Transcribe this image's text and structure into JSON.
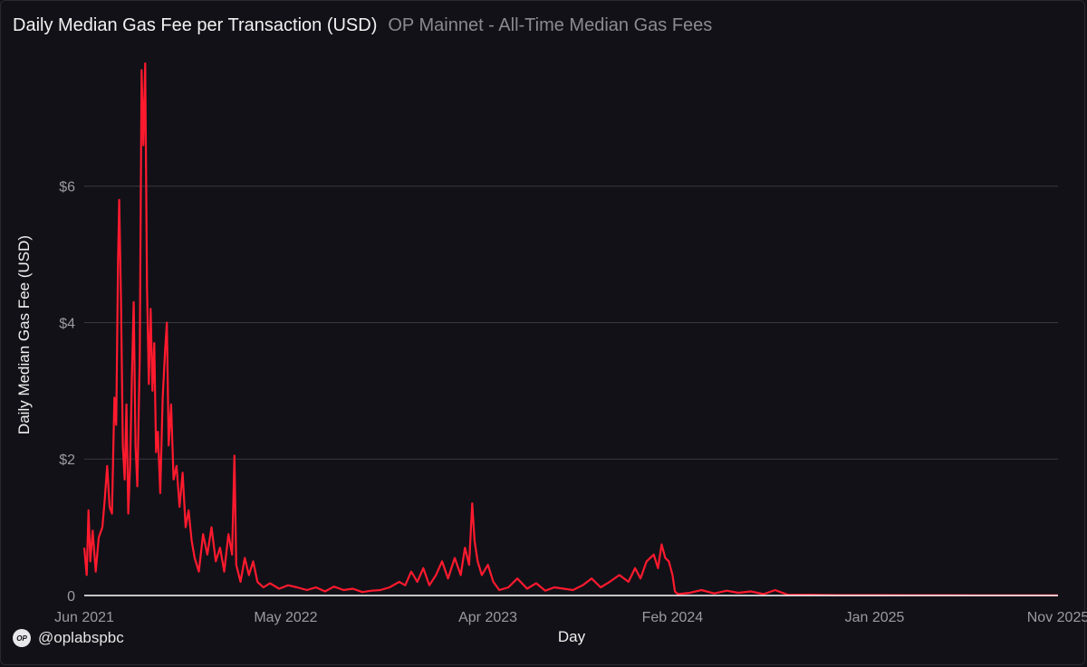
{
  "header": {
    "title": "Daily Median Gas Fee per Transaction (USD)",
    "subtitle": "OP Mainnet - All-Time Median Gas Fees"
  },
  "footer": {
    "logo_text": "OP",
    "handle": "@oplabspbc"
  },
  "colors": {
    "series": "#ff1a2e",
    "grid": "#3a3940",
    "baseline": "#ffffff",
    "background": "#121118"
  },
  "chart_data": {
    "type": "line",
    "xlabel": "Day",
    "ylabel": "Daily Median Gas Fee (USD)",
    "ylim": [
      0,
      7.8
    ],
    "grid": true,
    "y_ticks": [
      {
        "value": 0,
        "label": "0"
      },
      {
        "value": 2,
        "label": "$2"
      },
      {
        "value": 4,
        "label": "$4"
      },
      {
        "value": 6,
        "label": "$6"
      }
    ],
    "x_ticks": [
      {
        "date": "2021-06-01",
        "label": "Jun 2021"
      },
      {
        "date": "2022-05-01",
        "label": "May 2022"
      },
      {
        "date": "2023-04-01",
        "label": "Apr 2023"
      },
      {
        "date": "2024-02-01",
        "label": "Feb 2024"
      },
      {
        "date": "2025-01-01",
        "label": "Jan 2025"
      },
      {
        "date": "2025-11-01",
        "label": "Nov 2025"
      }
    ],
    "x_range": [
      "2021-06-01",
      "2025-11-01"
    ],
    "series": [
      {
        "values": [
          [
            "2021-06-01",
            0.7
          ],
          [
            "2021-06-05",
            0.3
          ],
          [
            "2021-06-08",
            1.25
          ],
          [
            "2021-06-11",
            0.5
          ],
          [
            "2021-06-15",
            0.95
          ],
          [
            "2021-06-20",
            0.35
          ],
          [
            "2021-06-25",
            0.85
          ],
          [
            "2021-07-01",
            1.0
          ],
          [
            "2021-07-05",
            1.4
          ],
          [
            "2021-07-09",
            1.9
          ],
          [
            "2021-07-13",
            1.3
          ],
          [
            "2021-07-17",
            1.2
          ],
          [
            "2021-07-21",
            2.9
          ],
          [
            "2021-07-24",
            2.5
          ],
          [
            "2021-07-27",
            4.9
          ],
          [
            "2021-07-29",
            5.8
          ],
          [
            "2021-08-01",
            4.3
          ],
          [
            "2021-08-04",
            2.2
          ],
          [
            "2021-08-07",
            1.7
          ],
          [
            "2021-08-10",
            2.8
          ],
          [
            "2021-08-13",
            1.2
          ],
          [
            "2021-08-16",
            1.9
          ],
          [
            "2021-08-19",
            3.2
          ],
          [
            "2021-08-22",
            4.3
          ],
          [
            "2021-08-25",
            2.2
          ],
          [
            "2021-08-28",
            1.6
          ],
          [
            "2021-09-01",
            3.5
          ],
          [
            "2021-09-04",
            7.7
          ],
          [
            "2021-09-07",
            6.6
          ],
          [
            "2021-09-10",
            7.8
          ],
          [
            "2021-09-13",
            4.5
          ],
          [
            "2021-09-16",
            3.1
          ],
          [
            "2021-09-19",
            4.2
          ],
          [
            "2021-09-22",
            3.0
          ],
          [
            "2021-09-25",
            3.7
          ],
          [
            "2021-09-28",
            2.1
          ],
          [
            "2021-10-01",
            2.4
          ],
          [
            "2021-10-05",
            1.5
          ],
          [
            "2021-10-09",
            2.9
          ],
          [
            "2021-10-13",
            3.6
          ],
          [
            "2021-10-16",
            4.0
          ],
          [
            "2021-10-19",
            2.2
          ],
          [
            "2021-10-23",
            2.8
          ],
          [
            "2021-10-27",
            1.7
          ],
          [
            "2021-11-01",
            1.9
          ],
          [
            "2021-11-06",
            1.3
          ],
          [
            "2021-11-11",
            1.8
          ],
          [
            "2021-11-16",
            1.0
          ],
          [
            "2021-11-21",
            1.25
          ],
          [
            "2021-11-26",
            0.8
          ],
          [
            "2021-12-01",
            0.55
          ],
          [
            "2021-12-08",
            0.35
          ],
          [
            "2021-12-15",
            0.9
          ],
          [
            "2021-12-22",
            0.6
          ],
          [
            "2021-12-29",
            1.0
          ],
          [
            "2022-01-05",
            0.5
          ],
          [
            "2022-01-12",
            0.7
          ],
          [
            "2022-01-19",
            0.35
          ],
          [
            "2022-01-26",
            0.9
          ],
          [
            "2022-02-01",
            0.6
          ],
          [
            "2022-02-05",
            2.05
          ],
          [
            "2022-02-08",
            0.45
          ],
          [
            "2022-02-15",
            0.2
          ],
          [
            "2022-02-22",
            0.55
          ],
          [
            "2022-03-01",
            0.3
          ],
          [
            "2022-03-08",
            0.5
          ],
          [
            "2022-03-15",
            0.2
          ],
          [
            "2022-03-25",
            0.12
          ],
          [
            "2022-04-05",
            0.18
          ],
          [
            "2022-04-20",
            0.1
          ],
          [
            "2022-05-05",
            0.15
          ],
          [
            "2022-05-20",
            0.12
          ],
          [
            "2022-06-05",
            0.08
          ],
          [
            "2022-06-20",
            0.12
          ],
          [
            "2022-07-05",
            0.06
          ],
          [
            "2022-07-20",
            0.13
          ],
          [
            "2022-08-05",
            0.08
          ],
          [
            "2022-08-20",
            0.1
          ],
          [
            "2022-09-05",
            0.05
          ],
          [
            "2022-09-20",
            0.07
          ],
          [
            "2022-10-05",
            0.08
          ],
          [
            "2022-10-20",
            0.12
          ],
          [
            "2022-11-05",
            0.2
          ],
          [
            "2022-11-15",
            0.15
          ],
          [
            "2022-11-25",
            0.35
          ],
          [
            "2022-12-05",
            0.2
          ],
          [
            "2022-12-15",
            0.4
          ],
          [
            "2022-12-25",
            0.15
          ],
          [
            "2023-01-05",
            0.3
          ],
          [
            "2023-01-15",
            0.5
          ],
          [
            "2023-01-25",
            0.25
          ],
          [
            "2023-02-05",
            0.55
          ],
          [
            "2023-02-15",
            0.3
          ],
          [
            "2023-02-22",
            0.7
          ],
          [
            "2023-03-01",
            0.45
          ],
          [
            "2023-03-06",
            1.35
          ],
          [
            "2023-03-10",
            0.8
          ],
          [
            "2023-03-15",
            0.5
          ],
          [
            "2023-03-22",
            0.3
          ],
          [
            "2023-04-01",
            0.45
          ],
          [
            "2023-04-10",
            0.2
          ],
          [
            "2023-04-20",
            0.08
          ],
          [
            "2023-05-05",
            0.12
          ],
          [
            "2023-05-20",
            0.25
          ],
          [
            "2023-06-05",
            0.1
          ],
          [
            "2023-06-20",
            0.18
          ],
          [
            "2023-07-05",
            0.07
          ],
          [
            "2023-07-20",
            0.12
          ],
          [
            "2023-08-05",
            0.1
          ],
          [
            "2023-08-20",
            0.08
          ],
          [
            "2023-09-05",
            0.15
          ],
          [
            "2023-09-20",
            0.25
          ],
          [
            "2023-10-05",
            0.12
          ],
          [
            "2023-10-20",
            0.2
          ],
          [
            "2023-11-05",
            0.3
          ],
          [
            "2023-11-20",
            0.2
          ],
          [
            "2023-12-01",
            0.4
          ],
          [
            "2023-12-10",
            0.25
          ],
          [
            "2023-12-20",
            0.5
          ],
          [
            "2024-01-01",
            0.6
          ],
          [
            "2024-01-08",
            0.4
          ],
          [
            "2024-01-14",
            0.75
          ],
          [
            "2024-01-20",
            0.55
          ],
          [
            "2024-01-26",
            0.5
          ],
          [
            "2024-02-01",
            0.3
          ],
          [
            "2024-02-05",
            0.06
          ],
          [
            "2024-02-10",
            0.02
          ],
          [
            "2024-03-01",
            0.04
          ],
          [
            "2024-03-20",
            0.08
          ],
          [
            "2024-04-10",
            0.03
          ],
          [
            "2024-05-01",
            0.07
          ],
          [
            "2024-05-20",
            0.04
          ],
          [
            "2024-06-10",
            0.06
          ],
          [
            "2024-07-01",
            0.02
          ],
          [
            "2024-07-20",
            0.08
          ],
          [
            "2024-08-10",
            0.01
          ],
          [
            "2024-09-15",
            0.01
          ],
          [
            "2024-11-01",
            0.005
          ],
          [
            "2025-01-01",
            0.005
          ],
          [
            "2025-03-01",
            0.004
          ],
          [
            "2025-05-01",
            0.004
          ],
          [
            "2025-07-01",
            0.003
          ],
          [
            "2025-09-01",
            0.003
          ],
          [
            "2025-11-01",
            0.003
          ]
        ]
      }
    ]
  }
}
